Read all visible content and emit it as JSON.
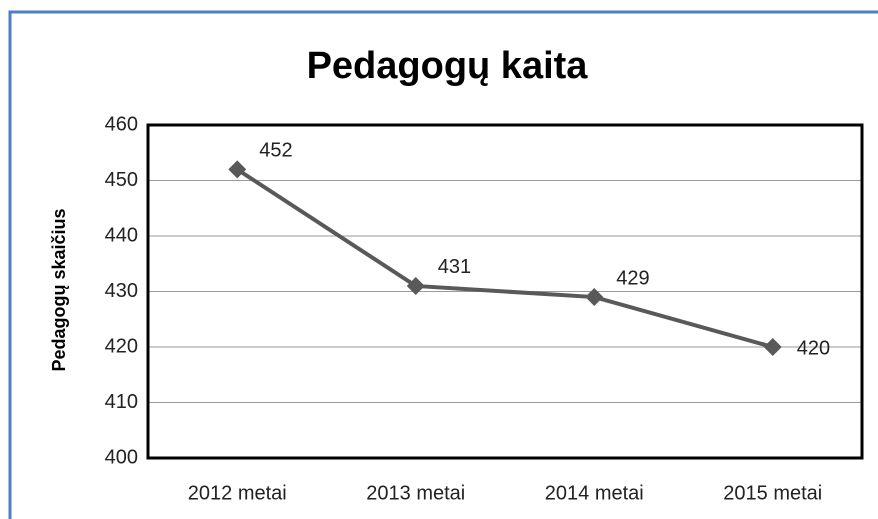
{
  "chart_data": {
    "type": "line",
    "title": "Pedagogų kaita",
    "y_label": "Pedagogų skaičius",
    "categories": [
      "2012 metai",
      "2013 metai",
      "2014 metai",
      "2015 metai"
    ],
    "series": [
      {
        "name": "Pedagogų skaičius",
        "color": "#595959",
        "values": [
          452,
          431,
          429,
          420
        ]
      }
    ],
    "ylim": [
      400,
      460
    ],
    "yticks": [
      400,
      410,
      420,
      430,
      440,
      450,
      460
    ],
    "grid": true,
    "legend": false
  }
}
